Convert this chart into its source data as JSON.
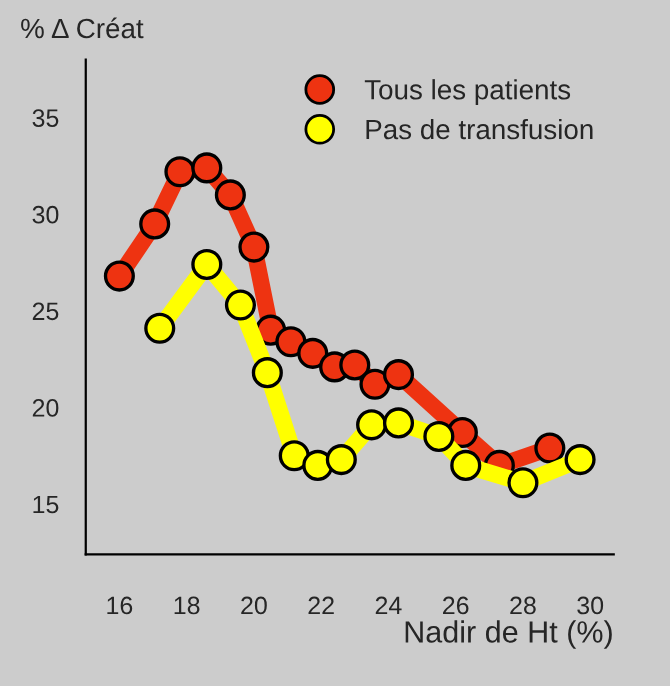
{
  "chart_data": {
    "type": "line",
    "ylabel": "% Δ Créat",
    "xlabel": "Nadir de Ht (%)",
    "xlim": [
      15.0,
      30.7
    ],
    "xticks": [
      16,
      18,
      20,
      22,
      24,
      26,
      28,
      30
    ],
    "ylim": [
      12.4,
      38
    ],
    "yticks": [
      15,
      20,
      25,
      30,
      35
    ],
    "legend": "top right",
    "marker": "circle",
    "line_style": "solid",
    "series": [
      {
        "name": "Tous les patients",
        "color": "#ee3311",
        "x": [
          16.0,
          17.05,
          17.8,
          18.6,
          19.3,
          20.0,
          20.5,
          21.1,
          21.75,
          22.4,
          23.0,
          23.6,
          24.3,
          26.2,
          27.3,
          28.8
        ],
        "values": [
          26.8,
          29.5,
          32.2,
          32.4,
          31.0,
          28.3,
          24.0,
          23.4,
          22.8,
          22.1,
          22.2,
          21.2,
          21.7,
          18.7,
          17.0,
          17.9
        ]
      },
      {
        "name": "Pas de transfusion",
        "color": "#ffff00",
        "x": [
          17.2,
          18.6,
          19.6,
          20.4,
          21.2,
          21.9,
          22.6,
          23.5,
          24.3,
          25.5,
          26.3,
          28.0,
          29.7
        ],
        "values": [
          24.1,
          27.4,
          25.3,
          21.8,
          17.5,
          17.0,
          17.3,
          19.1,
          19.2,
          18.5,
          17.0,
          16.1,
          17.3
        ]
      }
    ]
  }
}
